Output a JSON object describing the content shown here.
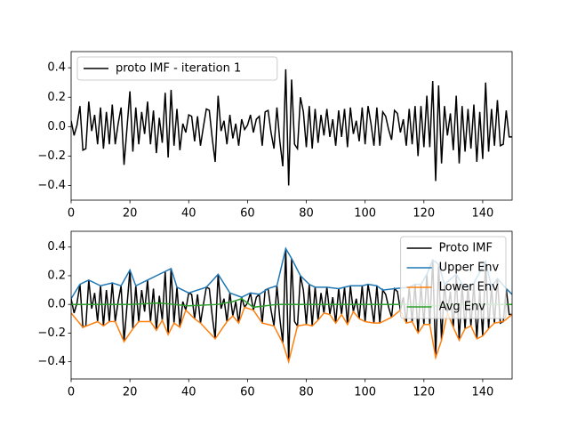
{
  "chart_data": [
    {
      "type": "line",
      "x": [
        0,
        1,
        2,
        3,
        4,
        5,
        6,
        7,
        8,
        9,
        10,
        11,
        12,
        13,
        14,
        15,
        16,
        17,
        18,
        19,
        20,
        21,
        22,
        23,
        24,
        25,
        26,
        27,
        28,
        29,
        30,
        31,
        32,
        33,
        34,
        35,
        36,
        37,
        38,
        39,
        40,
        41,
        42,
        43,
        44,
        45,
        46,
        47,
        48,
        49,
        50,
        51,
        52,
        53,
        54,
        55,
        56,
        57,
        58,
        59,
        60,
        61,
        62,
        63,
        64,
        65,
        66,
        67,
        68,
        69,
        70,
        71,
        72,
        73,
        74,
        75,
        76,
        77,
        78,
        79,
        80,
        81,
        82,
        83,
        84,
        85,
        86,
        87,
        88,
        89,
        90,
        91,
        92,
        93,
        94,
        95,
        96,
        97,
        98,
        99,
        100,
        101,
        102,
        103,
        104,
        105,
        106,
        107,
        108,
        109,
        110,
        111,
        112,
        113,
        114,
        115,
        116,
        117,
        118,
        119,
        120,
        121,
        122,
        123,
        124,
        125,
        126,
        127,
        128,
        129,
        130,
        131,
        132,
        133,
        134,
        135,
        136,
        137,
        138,
        139,
        140,
        141,
        142,
        143,
        144,
        145,
        146,
        147,
        148,
        149,
        150
      ],
      "series": [
        {
          "name": "proto IMF - iteration 1",
          "color": "#000000",
          "values": [
            0.04,
            -0.06,
            0.01,
            0.14,
            -0.16,
            -0.15,
            0.17,
            -0.03,
            0.08,
            -0.12,
            0.13,
            -0.15,
            0.1,
            -0.12,
            0.15,
            -0.12,
            0.02,
            0.13,
            -0.26,
            -0.01,
            0.24,
            -0.17,
            0.13,
            -0.12,
            0.1,
            -0.05,
            0.17,
            -0.12,
            0.11,
            -0.18,
            0.06,
            -0.11,
            0.23,
            -0.21,
            0.25,
            -0.13,
            0.12,
            -0.16,
            0.02,
            -0.04,
            0.08,
            0.07,
            -0.1,
            0.07,
            -0.13,
            0.0,
            0.12,
            0.11,
            -0.08,
            -0.24,
            0.21,
            -0.03,
            0.04,
            -0.12,
            0.08,
            -0.08,
            0.02,
            -0.13,
            0.05,
            -0.02,
            0.01,
            0.08,
            -0.04,
            0.05,
            0.07,
            -0.13,
            0.1,
            0.11,
            -0.04,
            -0.15,
            0.13,
            -0.1,
            -0.27,
            0.39,
            -0.4,
            0.32,
            -0.12,
            -0.15,
            0.2,
            0.1,
            -0.14,
            0.14,
            -0.15,
            0.12,
            -0.11,
            0.08,
            -0.06,
            0.12,
            -0.07,
            0.05,
            -0.13,
            0.11,
            -0.07,
            0.12,
            -0.14,
            0.13,
            -0.05,
            0.04,
            -0.1,
            0.13,
            -0.12,
            0.14,
            0.02,
            -0.13,
            0.13,
            -0.13,
            0.1,
            0.07,
            -0.02,
            -0.09,
            0.11,
            0.09,
            -0.04,
            0.05,
            -0.13,
            0.12,
            -0.12,
            0.14,
            -0.2,
            0.14,
            -0.14,
            0.21,
            -0.14,
            0.31,
            -0.37,
            0.28,
            -0.25,
            0.14,
            -0.06,
            0.09,
            -0.16,
            0.21,
            -0.25,
            0.14,
            -0.17,
            0.12,
            -0.15,
            0.15,
            -0.24,
            0.1,
            -0.22,
            0.3,
            -0.17,
            0.12,
            -0.13,
            0.18,
            -0.13,
            -0.12,
            0.11,
            -0.07,
            -0.07
          ]
        }
      ],
      "xlim": [
        0,
        150
      ],
      "xticks": [
        0,
        20,
        40,
        60,
        80,
        100,
        120,
        140
      ],
      "ylim": [
        -0.5,
        0.51
      ],
      "yticks": [
        {
          "value": -0.4,
          "label": "−0.4"
        },
        {
          "value": -0.2,
          "label": "−0.2"
        },
        {
          "value": 0,
          "label": "0.0"
        },
        0.2,
        0.4
      ],
      "legend": "upper left"
    },
    {
      "type": "line",
      "x": [
        0,
        1,
        2,
        3,
        4,
        5,
        6,
        7,
        8,
        9,
        10,
        11,
        12,
        13,
        14,
        15,
        16,
        17,
        18,
        19,
        20,
        21,
        22,
        23,
        24,
        25,
        26,
        27,
        28,
        29,
        30,
        31,
        32,
        33,
        34,
        35,
        36,
        37,
        38,
        39,
        40,
        41,
        42,
        43,
        44,
        45,
        46,
        47,
        48,
        49,
        50,
        51,
        52,
        53,
        54,
        55,
        56,
        57,
        58,
        59,
        60,
        61,
        62,
        63,
        64,
        65,
        66,
        67,
        68,
        69,
        70,
        71,
        72,
        73,
        74,
        75,
        76,
        77,
        78,
        79,
        80,
        81,
        82,
        83,
        84,
        85,
        86,
        87,
        88,
        89,
        90,
        91,
        92,
        93,
        94,
        95,
        96,
        97,
        98,
        99,
        100,
        101,
        102,
        103,
        104,
        105,
        106,
        107,
        108,
        109,
        110,
        111,
        112,
        113,
        114,
        115,
        116,
        117,
        118,
        119,
        120,
        121,
        122,
        123,
        124,
        125,
        126,
        127,
        128,
        129,
        130,
        131,
        132,
        133,
        134,
        135,
        136,
        137,
        138,
        139,
        140,
        141,
        142,
        143,
        144,
        145,
        146,
        147,
        148,
        149,
        150
      ],
      "series": [
        {
          "name": "Proto IMF",
          "color": "#000000",
          "values": [
            0.04,
            -0.06,
            0.01,
            0.14,
            -0.16,
            -0.15,
            0.17,
            -0.03,
            0.08,
            -0.12,
            0.13,
            -0.15,
            0.1,
            -0.12,
            0.15,
            -0.12,
            0.02,
            0.13,
            -0.26,
            -0.01,
            0.24,
            -0.17,
            0.13,
            -0.12,
            0.1,
            -0.05,
            0.17,
            -0.12,
            0.11,
            -0.18,
            0.06,
            -0.11,
            0.23,
            -0.21,
            0.25,
            -0.13,
            0.12,
            -0.16,
            0.02,
            -0.04,
            0.08,
            0.07,
            -0.1,
            0.07,
            -0.13,
            0.0,
            0.12,
            0.11,
            -0.08,
            -0.24,
            0.21,
            -0.03,
            0.04,
            -0.12,
            0.08,
            -0.08,
            0.02,
            -0.13,
            0.05,
            -0.02,
            0.01,
            0.08,
            -0.04,
            0.05,
            0.07,
            -0.13,
            0.1,
            0.11,
            -0.04,
            -0.15,
            0.13,
            -0.1,
            -0.27,
            0.39,
            -0.4,
            0.32,
            -0.12,
            -0.15,
            0.2,
            0.1,
            -0.14,
            0.14,
            -0.15,
            0.12,
            -0.11,
            0.08,
            -0.06,
            0.12,
            -0.07,
            0.05,
            -0.13,
            0.11,
            -0.07,
            0.12,
            -0.14,
            0.13,
            -0.05,
            0.04,
            -0.1,
            0.13,
            -0.12,
            0.14,
            0.02,
            -0.13,
            0.13,
            -0.13,
            0.1,
            0.07,
            -0.02,
            -0.09,
            0.11,
            0.09,
            -0.04,
            0.05,
            -0.13,
            0.12,
            -0.12,
            0.14,
            -0.2,
            0.14,
            -0.14,
            0.21,
            -0.14,
            0.31,
            -0.37,
            0.28,
            -0.25,
            0.14,
            -0.06,
            0.09,
            -0.16,
            0.21,
            -0.25,
            0.14,
            -0.17,
            0.12,
            -0.15,
            0.15,
            -0.24,
            0.1,
            -0.22,
            0.3,
            -0.17,
            0.12,
            -0.13,
            0.18,
            -0.13,
            -0.12,
            0.11,
            -0.07,
            -0.07
          ]
        },
        {
          "name": "Upper Env",
          "color": "#1f77b4",
          "x": [
            0,
            3,
            6,
            10,
            14,
            17,
            20,
            22,
            26,
            32,
            34,
            36,
            40,
            46,
            50,
            54,
            58,
            61,
            64,
            67,
            70,
            73,
            75,
            78,
            81,
            83,
            87,
            91,
            93,
            95,
            99,
            101,
            104,
            106,
            110,
            115,
            117,
            119,
            121,
            123,
            125,
            127,
            131,
            133,
            135,
            137,
            141,
            143,
            145,
            148,
            150
          ],
          "values": [
            0.04,
            0.14,
            0.17,
            0.13,
            0.15,
            0.13,
            0.24,
            0.13,
            0.17,
            0.23,
            0.25,
            0.12,
            0.08,
            0.12,
            0.21,
            0.08,
            0.05,
            0.08,
            0.07,
            0.11,
            0.13,
            0.39,
            0.32,
            0.2,
            0.14,
            0.12,
            0.12,
            0.11,
            0.12,
            0.13,
            0.13,
            0.14,
            0.13,
            0.1,
            0.11,
            0.12,
            0.14,
            0.14,
            0.21,
            0.31,
            0.28,
            0.14,
            0.21,
            0.14,
            0.12,
            0.15,
            0.3,
            0.12,
            0.18,
            0.11,
            0.07
          ]
        },
        {
          "name": "Lower Env",
          "color": "#ff7f0e",
          "x": [
            0,
            4,
            9,
            11,
            13,
            15,
            18,
            21,
            23,
            27,
            29,
            31,
            33,
            35,
            37,
            39,
            42,
            44,
            49,
            53,
            55,
            57,
            59,
            62,
            65,
            69,
            72,
            74,
            77,
            80,
            82,
            84,
            86,
            88,
            90,
            92,
            94,
            96,
            98,
            100,
            103,
            105,
            109,
            112,
            114,
            116,
            118,
            120,
            122,
            124,
            126,
            128,
            130,
            132,
            134,
            136,
            138,
            140,
            142,
            144,
            147,
            150
          ],
          "values": [
            -0.06,
            -0.16,
            -0.12,
            -0.15,
            -0.12,
            -0.12,
            -0.26,
            -0.17,
            -0.12,
            -0.12,
            -0.18,
            -0.11,
            -0.21,
            -0.13,
            -0.16,
            -0.04,
            -0.1,
            -0.13,
            -0.24,
            -0.12,
            -0.08,
            -0.13,
            -0.02,
            -0.04,
            -0.13,
            -0.15,
            -0.27,
            -0.4,
            -0.15,
            -0.14,
            -0.15,
            -0.11,
            -0.06,
            -0.07,
            -0.13,
            -0.07,
            -0.14,
            -0.05,
            -0.1,
            -0.12,
            -0.13,
            -0.13,
            -0.09,
            -0.04,
            -0.13,
            -0.12,
            -0.2,
            -0.14,
            -0.14,
            -0.37,
            -0.25,
            -0.06,
            -0.16,
            -0.25,
            -0.17,
            -0.15,
            -0.24,
            -0.22,
            -0.17,
            -0.13,
            -0.12,
            -0.07
          ]
        },
        {
          "name": "Avg Env",
          "color": "#2ca02c",
          "x": [
            0,
            10,
            20,
            30,
            40,
            50,
            55,
            58,
            62,
            70,
            73,
            80,
            90,
            100,
            110,
            120,
            124,
            130,
            140,
            150
          ],
          "values": [
            0,
            0,
            0,
            0.01,
            -0.01,
            0,
            0.02,
            0.04,
            -0.02,
            0,
            0,
            0,
            0,
            0,
            0,
            0,
            -0.01,
            0,
            0,
            0
          ]
        }
      ],
      "xlim": [
        0,
        150
      ],
      "xticks": [
        0,
        20,
        40,
        60,
        80,
        100,
        120,
        140
      ],
      "ylim": [
        -0.52,
        0.51
      ],
      "yticks": [
        {
          "value": -0.4,
          "label": "−0.4"
        },
        {
          "value": -0.2,
          "label": "−0.2"
        },
        {
          "value": 0,
          "label": "0.0"
        },
        0.2,
        0.4
      ],
      "legend": "upper right"
    }
  ]
}
